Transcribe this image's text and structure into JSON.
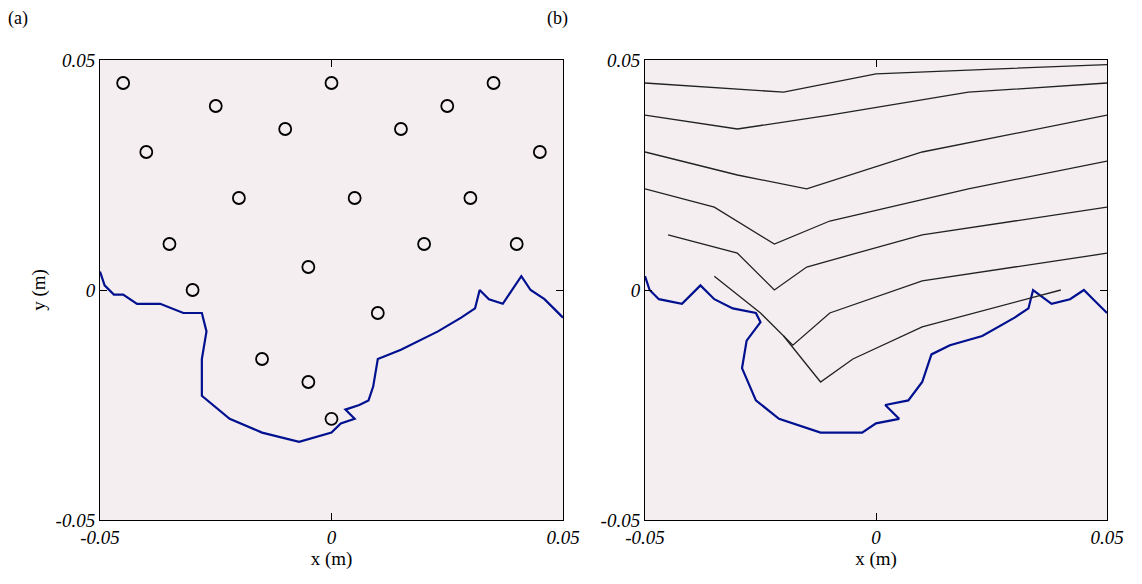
{
  "chart_data": [
    {
      "type": "scatter",
      "title": "(a)",
      "x_label": "x (m)",
      "y_label": "y (m)",
      "xlim": [
        -0.05,
        0.05
      ],
      "ylim": [
        -0.05,
        0.05
      ],
      "xticks": [
        -0.05,
        0,
        0.05
      ],
      "yticks": [
        -0.05,
        0,
        0.05
      ],
      "series": [
        {
          "type": "line",
          "color": "#00108f",
          "line_style": "solid",
          "x": [
            -0.05,
            -0.049,
            -0.047,
            -0.045,
            -0.042,
            -0.037,
            -0.032,
            -0.028,
            -0.027,
            -0.028,
            -0.028,
            -0.022,
            -0.015,
            -0.007,
            0,
            0.002,
            0.005,
            0.003,
            0.006,
            0.008,
            0.009,
            0.01,
            0.015,
            0.019,
            0.023,
            0.028,
            0.031,
            0.032,
            0.034,
            0.037,
            0.039,
            0.041,
            0.043,
            0.046,
            0.048,
            0.05
          ],
          "y": [
            0.004,
            0.001,
            -0.001,
            -0.001,
            -0.003,
            -0.003,
            -0.005,
            -0.005,
            -0.009,
            -0.015,
            -0.023,
            -0.028,
            -0.031,
            -0.033,
            -0.031,
            -0.029,
            -0.028,
            -0.026,
            -0.025,
            -0.024,
            -0.021,
            -0.015,
            -0.013,
            -0.011,
            -0.009,
            -0.006,
            -0.004,
            0,
            -0.002,
            -0.003,
            0,
            0.003,
            0,
            -0.002,
            -0.004,
            -0.006
          ]
        },
        {
          "type": "scatter",
          "color": "#000000",
          "marker": "circle-open",
          "x": [
            -0.045,
            -0.04,
            -0.035,
            -0.03,
            -0.025,
            -0.02,
            -0.01,
            -0.005,
            0.0,
            0.005,
            0.01,
            0.015,
            0.02,
            0.025,
            0.03,
            0.035,
            0.04,
            0.045,
            -0.015,
            -0.005,
            0.0
          ],
          "y": [
            0.045,
            0.03,
            0.01,
            0.0,
            0.04,
            0.02,
            0.035,
            0.005,
            0.045,
            0.02,
            -0.005,
            0.035,
            0.01,
            0.04,
            0.02,
            0.045,
            0.01,
            0.03,
            -0.015,
            -0.02,
            -0.028
          ]
        }
      ]
    },
    {
      "type": "line",
      "title": "(b)",
      "x_label": "x (m)",
      "xlim": [
        -0.05,
        0.05
      ],
      "ylim": [
        -0.05,
        0.05
      ],
      "xticks": [
        -0.05,
        0,
        0.05
      ],
      "yticks": [
        -0.05,
        0,
        0.05
      ],
      "series": [
        {
          "type": "line",
          "color": "#00108f",
          "line_style": "solid",
          "x": [
            -0.05,
            -0.049,
            -0.047,
            -0.042,
            -0.04,
            -0.038,
            -0.035,
            -0.031,
            -0.026,
            -0.025,
            -0.028,
            -0.029,
            -0.026,
            -0.021,
            -0.012,
            -0.003,
            0,
            0.005,
            0.002,
            0.007,
            0.01,
            0.012,
            0.016,
            0.023,
            0.03,
            0.033,
            0.034,
            0.038,
            0.042,
            0.045,
            0.047,
            0.05
          ],
          "y": [
            0.003,
            0,
            -0.002,
            -0.003,
            -0.001,
            0.001,
            -0.002,
            -0.004,
            -0.005,
            -0.007,
            -0.011,
            -0.017,
            -0.024,
            -0.028,
            -0.031,
            -0.031,
            -0.029,
            -0.028,
            -0.025,
            -0.024,
            -0.02,
            -0.014,
            -0.012,
            -0.01,
            -0.006,
            -0.004,
            0,
            -0.003,
            -0.002,
            0,
            -0.002,
            -0.005
          ]
        },
        {
          "type": "line",
          "color": "#222222",
          "line_style": "solid",
          "x": [
            -0.05,
            -0.02,
            0.0,
            0.05
          ],
          "y": [
            0.045,
            0.043,
            0.047,
            0.049
          ]
        },
        {
          "type": "line",
          "color": "#222222",
          "line_style": "solid",
          "x": [
            -0.05,
            -0.03,
            -0.01,
            0.02,
            0.05
          ],
          "y": [
            0.038,
            0.035,
            0.038,
            0.043,
            0.045
          ]
        },
        {
          "type": "line",
          "color": "#222222",
          "line_style": "solid",
          "x": [
            -0.05,
            -0.03,
            -0.015,
            0.01,
            0.05
          ],
          "y": [
            0.03,
            0.025,
            0.022,
            0.03,
            0.038
          ]
        },
        {
          "type": "line",
          "color": "#222222",
          "line_style": "solid",
          "x": [
            -0.05,
            -0.035,
            -0.022,
            -0.01,
            0.02,
            0.05
          ],
          "y": [
            0.022,
            0.018,
            0.01,
            0.015,
            0.022,
            0.028
          ]
        },
        {
          "type": "line",
          "color": "#222222",
          "line_style": "solid",
          "x": [
            -0.045,
            -0.03,
            -0.022,
            -0.015,
            0.01,
            0.05
          ],
          "y": [
            0.012,
            0.008,
            0.0,
            0.005,
            0.012,
            0.018
          ]
        },
        {
          "type": "line",
          "color": "#222222",
          "line_style": "solid",
          "x": [
            -0.035,
            -0.025,
            -0.018,
            -0.01,
            0.01,
            0.05
          ],
          "y": [
            0.003,
            -0.005,
            -0.012,
            -0.005,
            0.002,
            0.008
          ]
        },
        {
          "type": "line",
          "color": "#222222",
          "line_style": "solid",
          "x": [
            -0.02,
            -0.012,
            -0.005,
            0.01,
            0.04
          ],
          "y": [
            -0.01,
            -0.02,
            -0.015,
            -0.008,
            0.0
          ]
        }
      ]
    }
  ]
}
